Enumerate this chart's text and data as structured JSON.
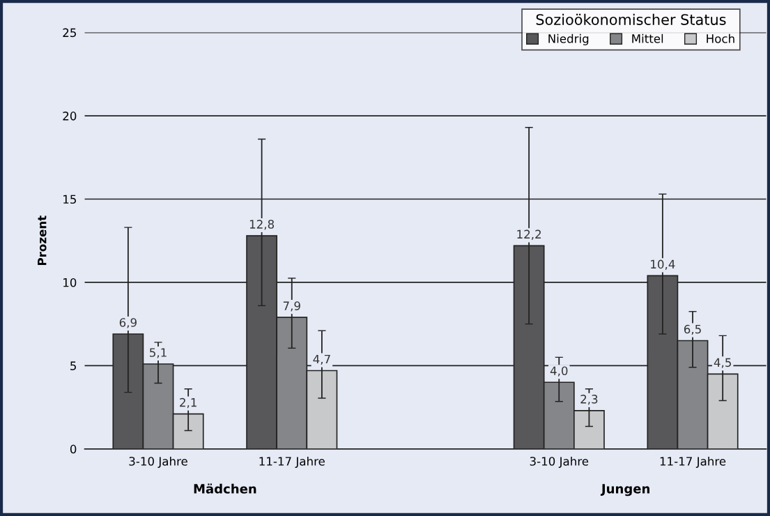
{
  "chart_data": {
    "type": "bar",
    "ylabel": "Prozent",
    "legend_title": "Sozioökonomischer Status",
    "categories": [
      "3-10 Jahre",
      "11-17 Jahre",
      null,
      "3-10 Jahre",
      "11-17 Jahre"
    ],
    "series": [
      {
        "name": "Niedrig",
        "color": "#58585a",
        "values": [
          6.9,
          12.8,
          null,
          12.2,
          10.4
        ],
        "value_labels": [
          "6,9",
          "12,8",
          null,
          "12,2",
          "10,4"
        ],
        "errors": [
          [
            3.4,
            13.3
          ],
          [
            8.6,
            18.6
          ],
          null,
          [
            7.5,
            19.3
          ],
          [
            6.9,
            15.3
          ]
        ]
      },
      {
        "name": "Mittel",
        "color": "#858689",
        "values": [
          5.1,
          7.9,
          null,
          4.0,
          6.5
        ],
        "value_labels": [
          "5,1",
          "7,9",
          null,
          "4,0",
          "6,5"
        ],
        "errors": [
          [
            3.95,
            6.4
          ],
          [
            6.05,
            10.25
          ],
          null,
          [
            2.85,
            5.5
          ],
          [
            4.9,
            8.25
          ]
        ]
      },
      {
        "name": "Hoch",
        "color": "#c8c9cb",
        "values": [
          2.1,
          4.7,
          null,
          2.3,
          4.5
        ],
        "value_labels": [
          "2,1",
          "4,7",
          null,
          "2,3",
          "4,5"
        ],
        "errors": [
          [
            1.1,
            3.6
          ],
          [
            3.05,
            7.1
          ],
          null,
          [
            1.35,
            3.6
          ],
          [
            2.9,
            6.8
          ]
        ]
      }
    ],
    "ylim": [
      0,
      25
    ],
    "yticks": [
      0,
      5,
      10,
      15,
      20,
      25
    ],
    "grid": "y",
    "legend": "top right",
    "annotations": [
      "Mädchen",
      "Jungen"
    ]
  }
}
